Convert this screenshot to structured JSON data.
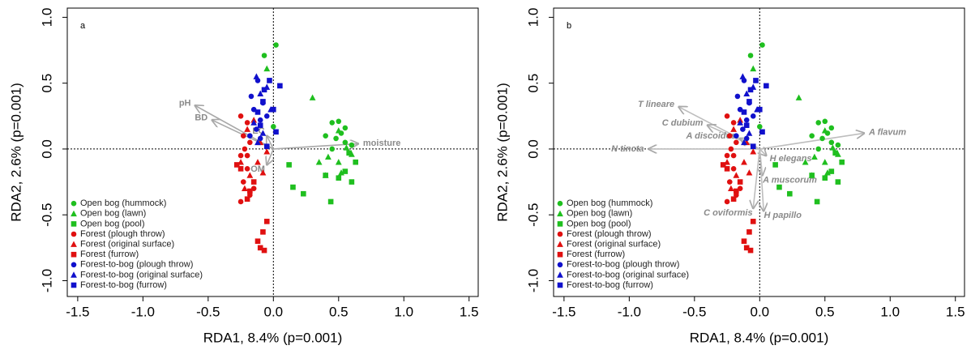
{
  "chart_data": [
    {
      "type": "biplot",
      "title": "a",
      "x_label": "RDA1, 8.4% (p=0.001)",
      "y_label": "RDA2, 2.6% (p=0.001)",
      "xlim": [
        -1.58,
        1.57
      ],
      "ylim": [
        -1.12,
        1.07
      ],
      "xticks": [
        -1.5,
        {
          "value": -1.0,
          "label": "-1.0"
        },
        -0.5,
        {
          "value": 0.0,
          "label": "0.0"
        },
        0.5,
        {
          "value": 1.0,
          "label": "1.0"
        },
        1.5
      ],
      "yticks": [
        {
          "value": -1.0,
          "label": "-1.0"
        },
        -0.5,
        {
          "value": 0.0,
          "label": "0.0"
        },
        0.5,
        {
          "value": 1.0,
          "label": "1.0"
        }
      ],
      "legend": "lower left",
      "arrow_color": "#a8a8a8",
      "series": [
        {
          "name": "Open bog (hummock)",
          "color": "#1fbf1f",
          "marker": "circle",
          "x": [
            -0.07,
            0.02,
            0.0,
            0.45,
            0.5,
            0.55,
            0.4,
            0.48,
            0.55,
            0.6,
            0.52,
            0.45
          ],
          "y": [
            0.71,
            0.79,
            0.17,
            0.2,
            0.21,
            0.16,
            0.1,
            0.08,
            0.05,
            0.03,
            0.12,
            0.0
          ]
        },
        {
          "name": "Open bog (lawn)",
          "color": "#1fbf1f",
          "marker": "triangle",
          "x": [
            -0.05,
            0.3,
            0.5,
            0.56,
            0.42,
            0.5,
            0.4,
            0.52,
            0.6,
            0.35
          ],
          "y": [
            0.61,
            0.39,
            0.14,
            0.01,
            -0.06,
            -0.1,
            -0.2,
            -0.18,
            -0.04,
            -0.1
          ]
        },
        {
          "name": "Open bog (pool)",
          "color": "#1fbf1f",
          "marker": "square",
          "x": [
            0.12,
            0.15,
            0.23,
            0.44,
            0.4,
            0.5,
            0.6,
            0.55,
            0.63,
            0.58
          ],
          "y": [
            -0.12,
            -0.29,
            -0.34,
            -0.4,
            -0.2,
            -0.22,
            -0.25,
            -0.17,
            -0.1,
            -0.03
          ]
        },
        {
          "name": "Forest (plough throw)",
          "color": "#e01010",
          "marker": "circle",
          "x": [
            -0.25,
            -0.2,
            -0.23,
            -0.18,
            -0.25,
            -0.2,
            -0.23,
            -0.25,
            -0.18,
            -0.15,
            -0.2,
            -0.22
          ],
          "y": [
            0.25,
            0.2,
            0.1,
            0.05,
            -0.05,
            -0.15,
            -0.25,
            -0.4,
            -0.35,
            -0.3,
            -0.05,
            0.0
          ]
        },
        {
          "name": "Forest (original surface)",
          "color": "#e01010",
          "marker": "triangle",
          "x": [
            -0.15,
            -0.2,
            -0.1,
            -0.25,
            -0.08,
            -0.18,
            -0.22,
            -0.12,
            -0.05
          ],
          "y": [
            0.22,
            0.15,
            0.05,
            -0.1,
            -0.18,
            -0.2,
            -0.3,
            -0.1,
            -0.02
          ]
        },
        {
          "name": "Forest (furrow)",
          "color": "#e01010",
          "marker": "square",
          "x": [
            -0.05,
            -0.08,
            -0.12,
            -0.1,
            -0.07,
            -0.25,
            -0.2,
            -0.15,
            -0.28,
            -0.18
          ],
          "y": [
            -0.55,
            -0.63,
            -0.7,
            -0.75,
            -0.77,
            -0.15,
            -0.38,
            -0.25,
            -0.12,
            -0.32
          ]
        },
        {
          "name": "Forest-to-bog (plough throw)",
          "color": "#1010cc",
          "marker": "circle",
          "x": [
            -0.12,
            -0.08,
            -0.15,
            -0.1,
            -0.17,
            -0.13,
            -0.18,
            -0.05,
            -0.1
          ],
          "y": [
            0.52,
            0.35,
            0.3,
            0.22,
            0.4,
            0.15,
            0.1,
            0.25,
            0.08
          ]
        },
        {
          "name": "Forest-to-bog (original surface)",
          "color": "#1010cc",
          "marker": "triangle",
          "x": [
            -0.13,
            -0.05,
            -0.1,
            -0.15,
            -0.08,
            -0.02,
            -0.12
          ],
          "y": [
            0.55,
            0.47,
            0.42,
            0.2,
            0.12,
            0.3,
            0.05
          ]
        },
        {
          "name": "Forest-to-bog (furrow)",
          "color": "#1010cc",
          "marker": "square",
          "x": [
            -0.03,
            0.05,
            -0.07,
            -0.08,
            0.0,
            -0.12,
            0.02,
            -0.05,
            -0.1
          ],
          "y": [
            0.52,
            0.48,
            0.45,
            0.36,
            0.3,
            0.28,
            0.13,
            0.02,
            0.18
          ]
        }
      ],
      "arrows": [
        {
          "name": "pH",
          "x": -0.6,
          "y": 0.33
        },
        {
          "name": "BD",
          "x": -0.47,
          "y": 0.22
        },
        {
          "name": "EC",
          "x": -0.05,
          "y": 0.1
        },
        {
          "name": "OM",
          "x": -0.05,
          "y": -0.12
        },
        {
          "name": "moisture",
          "x": 0.65,
          "y": 0.04
        }
      ]
    },
    {
      "type": "biplot",
      "title": "b",
      "x_label": "RDA1, 8.4% (p=0.001)",
      "y_label": "RDA2, 2.6% (p=0.001)",
      "xlim": [
        -1.58,
        1.57
      ],
      "ylim": [
        -1.12,
        1.07
      ],
      "xticks": [
        -1.5,
        {
          "value": -1.0,
          "label": "-1.0"
        },
        -0.5,
        {
          "value": 0.0,
          "label": "0.0"
        },
        0.5,
        {
          "value": 1.0,
          "label": "1.0"
        },
        1.5
      ],
      "yticks": [
        {
          "value": -1.0,
          "label": "-1.0"
        },
        -0.5,
        {
          "value": 0.0,
          "label": "0.0"
        },
        0.5,
        {
          "value": 1.0,
          "label": "1.0"
        }
      ],
      "legend": "lower left",
      "arrow_color": "#bdbdbd",
      "series": [
        {
          "name": "Open bog (hummock)",
          "color": "#1fbf1f",
          "marker": "circle",
          "x": [
            -0.07,
            0.02,
            0.0,
            0.45,
            0.5,
            0.55,
            0.4,
            0.48,
            0.55,
            0.6,
            0.52,
            0.45
          ],
          "y": [
            0.71,
            0.79,
            0.17,
            0.2,
            0.21,
            0.16,
            0.1,
            0.08,
            0.05,
            0.03,
            0.12,
            0.0
          ]
        },
        {
          "name": "Open bog (lawn)",
          "color": "#1fbf1f",
          "marker": "triangle",
          "x": [
            -0.05,
            0.3,
            0.5,
            0.56,
            0.42,
            0.5,
            0.4,
            0.52,
            0.6,
            0.35
          ],
          "y": [
            0.61,
            0.39,
            0.14,
            0.01,
            -0.06,
            -0.1,
            -0.2,
            -0.18,
            -0.04,
            -0.1
          ]
        },
        {
          "name": "Open bog (pool)",
          "color": "#1fbf1f",
          "marker": "square",
          "x": [
            0.12,
            0.15,
            0.23,
            0.44,
            0.4,
            0.5,
            0.6,
            0.55,
            0.63,
            0.58
          ],
          "y": [
            -0.12,
            -0.29,
            -0.34,
            -0.4,
            -0.2,
            -0.22,
            -0.25,
            -0.17,
            -0.1,
            -0.03
          ]
        },
        {
          "name": "Forest (plough throw)",
          "color": "#e01010",
          "marker": "circle",
          "x": [
            -0.25,
            -0.2,
            -0.23,
            -0.18,
            -0.25,
            -0.2,
            -0.23,
            -0.25,
            -0.18,
            -0.15,
            -0.2,
            -0.22
          ],
          "y": [
            0.25,
            0.2,
            0.1,
            0.05,
            -0.05,
            -0.15,
            -0.25,
            -0.4,
            -0.35,
            -0.3,
            -0.05,
            0.0
          ]
        },
        {
          "name": "Forest (original surface)",
          "color": "#e01010",
          "marker": "triangle",
          "x": [
            -0.15,
            -0.2,
            -0.1,
            -0.25,
            -0.08,
            -0.18,
            -0.22,
            -0.12,
            -0.05
          ],
          "y": [
            0.22,
            0.15,
            0.05,
            -0.1,
            -0.18,
            -0.2,
            -0.3,
            -0.1,
            -0.02
          ]
        },
        {
          "name": "Forest (furrow)",
          "color": "#e01010",
          "marker": "square",
          "x": [
            -0.05,
            -0.08,
            -0.12,
            -0.1,
            -0.07,
            -0.25,
            -0.2,
            -0.15,
            -0.28,
            -0.18
          ],
          "y": [
            -0.55,
            -0.63,
            -0.7,
            -0.75,
            -0.77,
            -0.15,
            -0.38,
            -0.25,
            -0.12,
            -0.32
          ]
        },
        {
          "name": "Forest-to-bog (plough throw)",
          "color": "#1010cc",
          "marker": "circle",
          "x": [
            -0.12,
            -0.08,
            -0.15,
            -0.1,
            -0.17,
            -0.13,
            -0.18,
            -0.05,
            -0.1
          ],
          "y": [
            0.52,
            0.35,
            0.3,
            0.22,
            0.4,
            0.15,
            0.1,
            0.25,
            0.08
          ]
        },
        {
          "name": "Forest-to-bog (original surface)",
          "color": "#1010cc",
          "marker": "triangle",
          "x": [
            -0.13,
            -0.05,
            -0.1,
            -0.15,
            -0.08,
            -0.02,
            -0.12
          ],
          "y": [
            0.55,
            0.47,
            0.42,
            0.2,
            0.12,
            0.3,
            0.05
          ]
        },
        {
          "name": "Forest-to-bog (furrow)",
          "color": "#1010cc",
          "marker": "square",
          "x": [
            -0.03,
            0.05,
            -0.07,
            -0.08,
            0.0,
            -0.12,
            0.02,
            -0.05,
            -0.1
          ],
          "y": [
            0.52,
            0.48,
            0.45,
            0.36,
            0.3,
            0.28,
            0.13,
            0.02,
            0.18
          ]
        }
      ],
      "arrows": [
        {
          "name": "T lineare",
          "x": -0.62,
          "y": 0.32
        },
        {
          "name": "C dubium",
          "x": -0.4,
          "y": 0.18
        },
        {
          "name": "A discoides",
          "x": -0.15,
          "y": 0.08
        },
        {
          "name": "N tincta",
          "x": -0.85,
          "y": 0.0
        },
        {
          "name": "A flavum",
          "x": 0.8,
          "y": 0.12
        },
        {
          "name": "H elegans",
          "x": 0.05,
          "y": -0.05
        },
        {
          "name": "A muscorum",
          "x": 0.02,
          "y": -0.2
        },
        {
          "name": "C oviformis",
          "x": -0.05,
          "y": -0.45
        },
        {
          "name": "H papillo",
          "x": 0.03,
          "y": -0.47
        }
      ]
    }
  ]
}
